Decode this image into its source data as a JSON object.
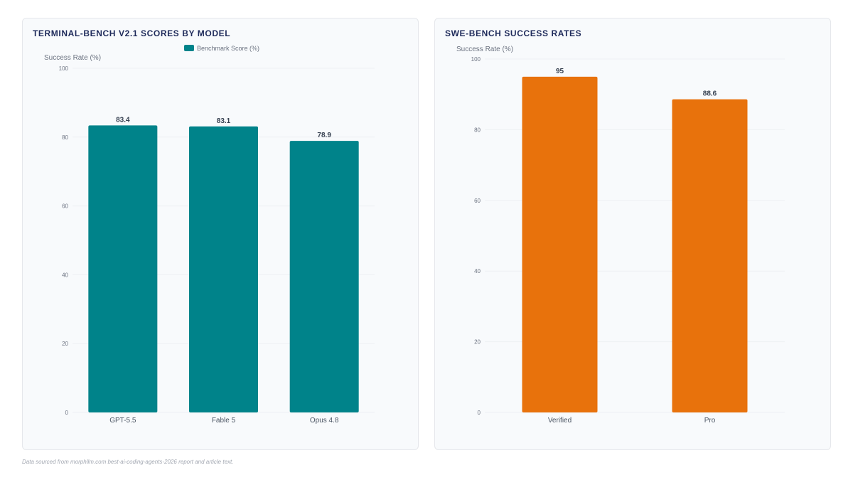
{
  "chart_data": [
    {
      "type": "bar",
      "title": "TERMINAL-BENCH V2.1 SCORES BY MODEL",
      "ylabel": "Success Rate (%)",
      "xlabel": "",
      "ylim": [
        0,
        100
      ],
      "yticks": [
        0,
        20,
        40,
        60,
        80,
        100
      ],
      "categories": [
        "GPT-5.5",
        "Fable 5",
        "Opus 4.8"
      ],
      "series": [
        {
          "name": "Benchmark Score (%)",
          "values": [
            83.4,
            83.1,
            78.9
          ],
          "labels": [
            "83.4",
            "83.1",
            "78.9"
          ],
          "color": "#00838a"
        }
      ],
      "legend": "top-center",
      "grid": true
    },
    {
      "type": "bar",
      "title": "SWE-BENCH SUCCESS RATES",
      "ylabel": "Success Rate (%)",
      "xlabel": "",
      "ylim": [
        0,
        100
      ],
      "yticks": [
        0,
        20,
        40,
        60,
        80,
        100
      ],
      "categories": [
        "Verified",
        "Pro"
      ],
      "series": [
        {
          "values": [
            95,
            88.6
          ],
          "labels": [
            "95",
            "88.6"
          ],
          "color": "#e8720c"
        }
      ],
      "grid": true
    }
  ],
  "footnote": "Data sourced from morphllm.com best-ai-coding-agents-2026 report and article text.",
  "colors": {
    "title": "#1e2a5a",
    "axis_text": "#6b7280",
    "grid": "#eef0f3",
    "panel_bg": "#f8fafc"
  }
}
